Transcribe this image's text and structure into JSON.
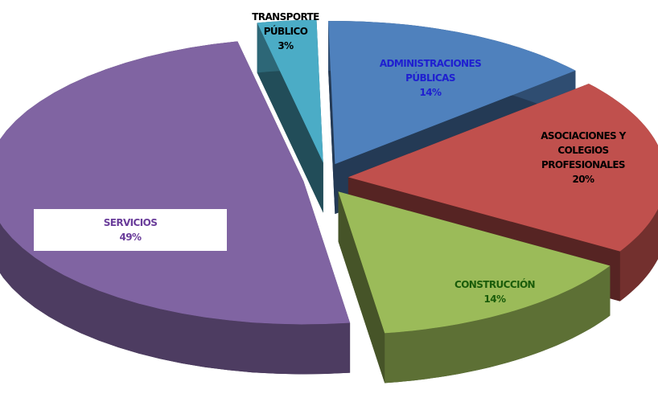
{
  "chart_data": {
    "type": "pie3d",
    "categories": [
      "TRANSPORTE PÚBLICO",
      "ADMINISTRACIONES PÚBLICAS",
      "ASOCIACIONES Y COLEGIOS PROFESIONALES",
      "CONSTRUCCIÓN",
      "SERVICIOS"
    ],
    "values": [
      3,
      14,
      20,
      14,
      49
    ],
    "value_labels": [
      "3%",
      "14%",
      "20%",
      "14%",
      "49%"
    ],
    "colors": [
      "#4bacc6",
      "#4f81bd",
      "#c0504d",
      "#9bbb59",
      "#8064a2"
    ],
    "label_colors": [
      "#000000",
      "#1f1fd0",
      "#000000",
      "#1a5c0a",
      "#6a3d9a"
    ]
  }
}
